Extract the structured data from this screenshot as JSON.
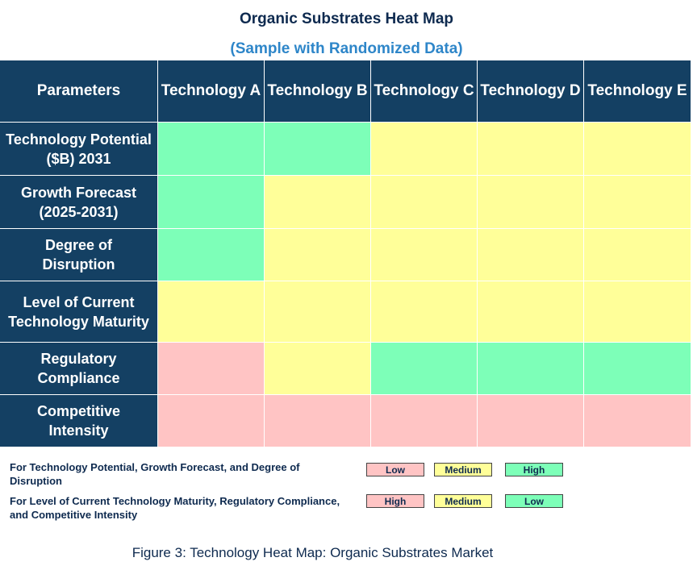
{
  "chart_data": {
    "type": "heatmap",
    "title": "Organic Substrates Heat Map",
    "subtitle": "(Sample with Randomized Data)",
    "corner_label": "Parameters",
    "columns": [
      "Technology A",
      "Technology B",
      "Technology C",
      "Technology D",
      "Technology E"
    ],
    "rows": [
      {
        "label": "Technology Potential ($B) 2031",
        "lines": [
          "Technology Potential",
          "($B) 2031"
        ],
        "values": [
          "High",
          "High",
          "Medium",
          "Medium",
          "Medium"
        ],
        "scale": "potential"
      },
      {
        "label": "Growth Forecast (2025-2031)",
        "lines": [
          "Growth Forecast",
          "(2025-2031)"
        ],
        "values": [
          "High",
          "Medium",
          "Medium",
          "Medium",
          "Medium"
        ],
        "scale": "potential"
      },
      {
        "label": "Degree of Disruption",
        "lines": [
          "Degree of",
          "Disruption"
        ],
        "values": [
          "High",
          "Medium",
          "Medium",
          "Medium",
          "Medium"
        ],
        "scale": "potential"
      },
      {
        "label": "Level of Current Technology Maturity",
        "lines": [
          "Level of Current",
          "Technology Maturity"
        ],
        "values": [
          "Medium",
          "Medium",
          "Medium",
          "Medium",
          "Medium"
        ],
        "scale": "maturity"
      },
      {
        "label": "Regulatory Compliance",
        "lines": [
          "Regulatory",
          "Compliance"
        ],
        "values": [
          "High",
          "Medium",
          "Low",
          "Low",
          "Low"
        ],
        "scale": "maturity"
      },
      {
        "label": "Competitive Intensity",
        "lines": [
          "Competitive",
          "Intensity"
        ],
        "values": [
          "High",
          "High",
          "High",
          "High",
          "High"
        ],
        "scale": "maturity"
      }
    ],
    "colors": {
      "potential": {
        "Low": "#ffc4c4",
        "Medium": "#ffff99",
        "High": "#7dffb8"
      },
      "maturity": {
        "High": "#ffc4c4",
        "Medium": "#ffff99",
        "Low": "#7dffb8"
      }
    },
    "legend": [
      {
        "text": "For Technology Potential, Growth Forecast, and Degree of Disruption",
        "items": [
          {
            "label": "Low",
            "color": "#ffc4c4"
          },
          {
            "label": "Medium",
            "color": "#ffff99"
          },
          {
            "label": "High",
            "color": "#7dffb8"
          }
        ]
      },
      {
        "text": "For Level of Current Technology Maturity, Regulatory Compliance, and Competitive Intensity",
        "items": [
          {
            "label": "High",
            "color": "#ffc4c4"
          },
          {
            "label": "Medium",
            "color": "#ffff99"
          },
          {
            "label": "Low",
            "color": "#7dffb8"
          }
        ]
      }
    ],
    "caption": "Figure 3: Technology Heat Map: Organic Substrates Market"
  },
  "theme": {
    "header_bg": "#144063",
    "title_color": "#0e2a4f",
    "subtitle_color": "#2e86c9"
  }
}
